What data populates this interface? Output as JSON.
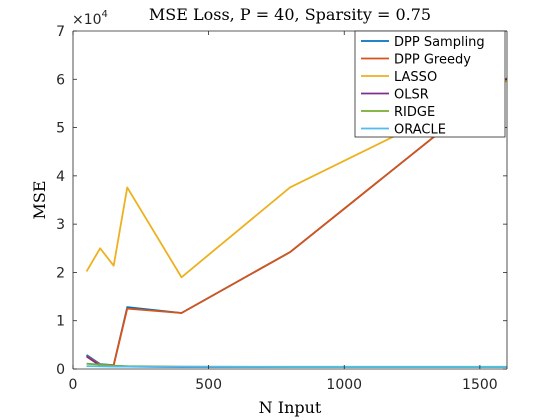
{
  "chart_data": {
    "type": "line",
    "title": "MSE Loss, P = 40, Sparsity = 0.75",
    "xlabel": "N Input",
    "ylabel": "MSE",
    "xlim": [
      0,
      1600
    ],
    "ylim": [
      0,
      70000
    ],
    "xticks": [
      0,
      500,
      1000,
      1500
    ],
    "yticks": [
      0,
      10000,
      20000,
      30000,
      40000,
      50000,
      60000,
      70000
    ],
    "xtick_labels": [
      "0",
      "500",
      "1000",
      "1500"
    ],
    "ytick_labels": [
      "0",
      "1",
      "2",
      "3",
      "4",
      "5",
      "6",
      "7"
    ],
    "y_exponent_base": "×10",
    "y_exponent_power": "4",
    "grid": false,
    "legend_position": "top-right",
    "x": [
      50,
      100,
      150,
      200,
      400,
      800,
      1600
    ],
    "series": [
      {
        "name": "DPP Sampling",
        "color": "#0072BD",
        "values": [
          2900,
          1000,
          800,
          12800,
          11600,
          24200,
          60200
        ]
      },
      {
        "name": "DPP Greedy",
        "color": "#D95319",
        "values": [
          2700,
          900,
          800,
          12500,
          11600,
          24200,
          60200
        ]
      },
      {
        "name": "LASSO",
        "color": "#EDB120",
        "values": [
          20200,
          25000,
          21400,
          37600,
          19000,
          37600,
          59700
        ]
      },
      {
        "name": "OLSR",
        "color": "#7E2F8E",
        "values": [
          2600,
          700,
          600,
          500,
          400,
          400,
          400
        ]
      },
      {
        "name": "RIDGE",
        "color": "#77AC30",
        "values": [
          1100,
          900,
          700,
          600,
          500,
          400,
          400
        ]
      },
      {
        "name": "ORACLE",
        "color": "#4DBEEE",
        "values": [
          600,
          550,
          500,
          500,
          450,
          450,
          450
        ]
      }
    ]
  }
}
